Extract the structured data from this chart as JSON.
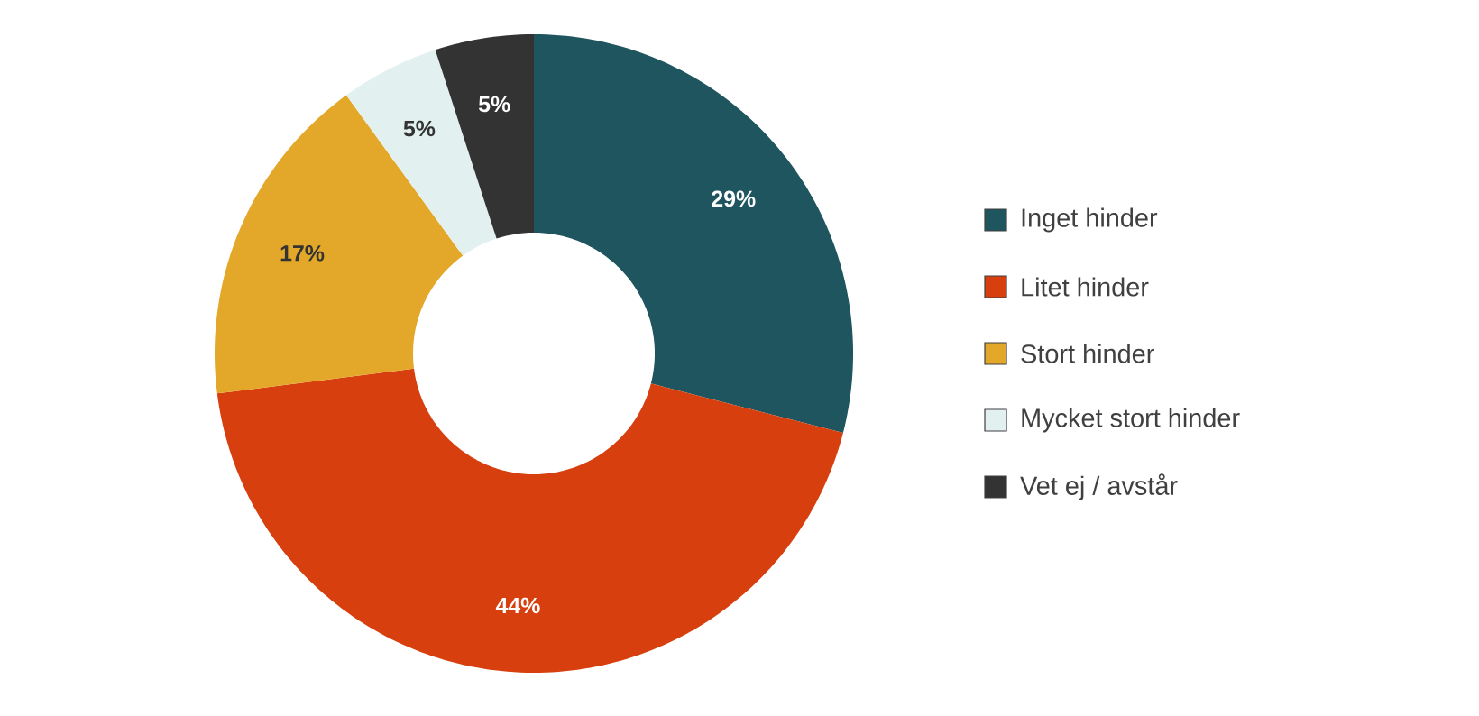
{
  "chart_data": {
    "type": "donut",
    "categories": [
      "Inget hinder",
      "Litet hinder",
      "Stort hinder",
      "Mycket stort hinder",
      "Vet ej / avstår"
    ],
    "values": [
      29,
      44,
      17,
      5,
      5
    ],
    "colors": [
      "#1f555e",
      "#d73f0e",
      "#e3a82a",
      "#e2f1ef",
      "#333333"
    ],
    "value_labels": [
      "29%",
      "44%",
      "17%",
      "5%",
      "5%"
    ],
    "legend": "right"
  }
}
